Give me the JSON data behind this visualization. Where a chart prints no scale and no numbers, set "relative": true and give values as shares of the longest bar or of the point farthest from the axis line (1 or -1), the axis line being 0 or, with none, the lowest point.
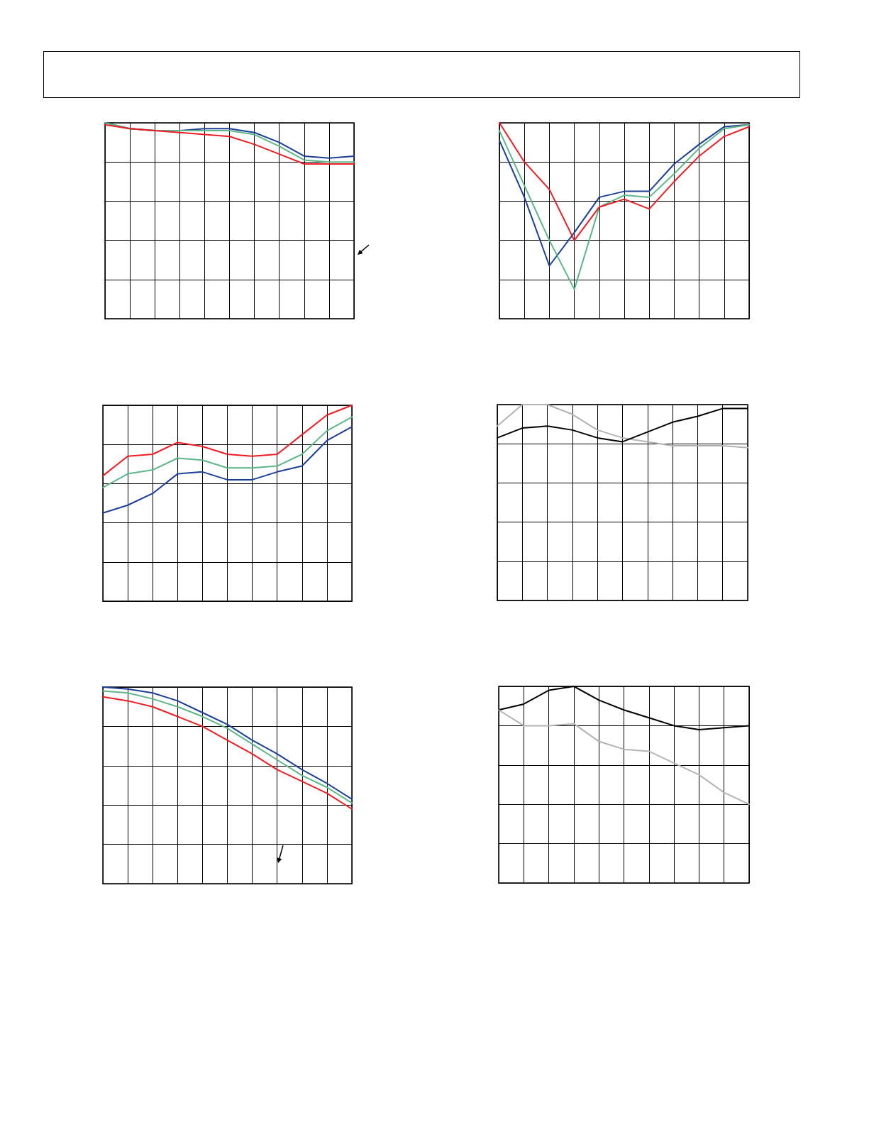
{
  "chart_data": [
    {
      "type": "line",
      "relative": true,
      "grid": true,
      "categories": [
        null,
        null,
        null,
        null,
        null,
        null,
        null,
        null,
        null,
        null,
        null
      ],
      "series": [
        {
          "color": "#1c3f94",
          "values": [
            1,
            0.97,
            0.96,
            0.96,
            0.97,
            0.97,
            0.95,
            0.9,
            0.83,
            0.82,
            0.83
          ]
        },
        {
          "color": "#5fb58a",
          "values": [
            1,
            0.97,
            0.96,
            0.96,
            0.96,
            0.96,
            0.94,
            0.88,
            0.81,
            0.8,
            0.8
          ]
        },
        {
          "color": "#ed1c24",
          "values": [
            0.99,
            0.97,
            0.96,
            0.95,
            0.94,
            0.93,
            0.89,
            0.84,
            0.79,
            0.79,
            0.79
          ]
        }
      ]
    },
    {
      "type": "line",
      "relative": true,
      "grid": true,
      "categories": [
        null,
        null,
        null,
        null,
        null,
        null,
        null,
        null,
        null,
        null,
        null
      ],
      "series": [
        {
          "color": "#1c3f94",
          "values": [
            0.91,
            0.62,
            0.27,
            0.44,
            0.62,
            0.65,
            0.65,
            0.79,
            0.89,
            0.98,
            0.99
          ]
        },
        {
          "color": "#5fb58a",
          "values": [
            0.96,
            0.68,
            0.4,
            0.15,
            0.57,
            0.63,
            0.62,
            0.74,
            0.87,
            0.97,
            0.99
          ]
        },
        {
          "color": "#ed1c24",
          "values": [
            1,
            0.8,
            0.66,
            0.4,
            0.57,
            0.61,
            0.56,
            0.7,
            0.83,
            0.93,
            0.98
          ]
        }
      ]
    },
    {
      "type": "line",
      "relative": true,
      "grid": true,
      "categories": [
        null,
        null,
        null,
        null,
        null,
        null,
        null,
        null,
        null,
        null,
        null
      ],
      "series": [
        {
          "color": "#ed1c24",
          "values": [
            0.64,
            0.74,
            0.75,
            0.81,
            0.79,
            0.75,
            0.74,
            0.75,
            0.85,
            0.95,
            1
          ]
        },
        {
          "color": "#5fb58a",
          "values": [
            0.58,
            0.65,
            0.67,
            0.73,
            0.72,
            0.68,
            0.68,
            0.69,
            0.75,
            0.87,
            0.94
          ]
        },
        {
          "color": "#1c3f94",
          "values": [
            0.45,
            0.49,
            0.55,
            0.65,
            0.66,
            0.62,
            0.62,
            0.66,
            0.69,
            0.82,
            0.89
          ]
        }
      ]
    },
    {
      "type": "line",
      "relative": true,
      "grid": true,
      "categories": [
        null,
        null,
        null,
        null,
        null,
        null,
        null,
        null,
        null,
        null,
        null
      ],
      "series": [
        {
          "color": "#b3b3b3",
          "values": [
            0.89,
            1,
            1,
            0.95,
            0.87,
            0.83,
            0.81,
            0.79,
            0.79,
            0.79,
            0.78
          ]
        },
        {
          "color": "#000000",
          "values": [
            0.83,
            0.88,
            0.89,
            0.87,
            0.83,
            0.81,
            0.86,
            0.91,
            0.94,
            0.98,
            0.98
          ]
        }
      ]
    },
    {
      "type": "line",
      "relative": true,
      "grid": true,
      "categories": [
        null,
        null,
        null,
        null,
        null,
        null,
        null,
        null,
        null,
        null,
        null
      ],
      "series": [
        {
          "color": "#1c3f94",
          "values": [
            1,
            0.99,
            0.97,
            0.93,
            0.87,
            0.81,
            0.73,
            0.66,
            0.58,
            0.51,
            0.43
          ]
        },
        {
          "color": "#5fb58a",
          "values": [
            0.98,
            0.97,
            0.94,
            0.9,
            0.85,
            0.79,
            0.71,
            0.63,
            0.55,
            0.49,
            0.41
          ]
        },
        {
          "color": "#ed1c24",
          "values": [
            0.95,
            0.93,
            0.9,
            0.85,
            0.8,
            0.73,
            0.66,
            0.58,
            0.52,
            0.46,
            0.38
          ]
        }
      ]
    },
    {
      "type": "line",
      "relative": true,
      "grid": true,
      "categories": [
        null,
        null,
        null,
        null,
        null,
        null,
        null,
        null,
        null,
        null,
        null
      ],
      "series": [
        {
          "color": "#000000",
          "values": [
            0.88,
            0.91,
            0.98,
            1,
            0.93,
            0.88,
            0.84,
            0.8,
            0.78,
            0.79,
            0.8
          ]
        },
        {
          "color": "#b3b3b3",
          "values": [
            0.88,
            0.8,
            0.8,
            0.81,
            0.72,
            0.68,
            0.67,
            0.61,
            0.55,
            0.46,
            0.4
          ]
        }
      ]
    }
  ]
}
